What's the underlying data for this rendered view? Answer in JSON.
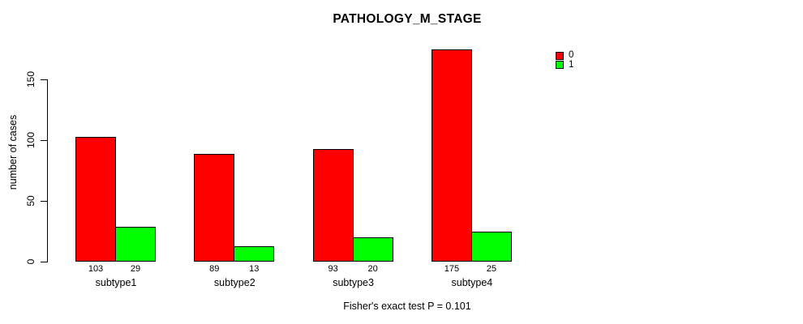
{
  "title": "PATHOLOGY_M_STAGE",
  "chart_data": {
    "type": "bar",
    "title": "PATHOLOGY_M_STAGE",
    "categories": [
      "subtype1",
      "subtype2",
      "subtype3",
      "subtype4"
    ],
    "series": [
      {
        "name": "0",
        "color": "#ff0000",
        "values": [
          103,
          89,
          93,
          175
        ]
      },
      {
        "name": "1",
        "color": "#00ff00",
        "values": [
          29,
          13,
          20,
          25
        ]
      }
    ],
    "xlabel": "",
    "ylabel": "number of cases",
    "yticks": [
      0,
      50,
      100,
      150
    ],
    "ylim": [
      0,
      175
    ],
    "grid": false,
    "legend_position": "top-right",
    "bar_value_labels": true,
    "annotation": "Fisher's exact test P = 0.101",
    "colors": {
      "series0": "#ff0000",
      "series1": "#00ff00",
      "axis": "#000000",
      "background": "#ffffff"
    }
  }
}
